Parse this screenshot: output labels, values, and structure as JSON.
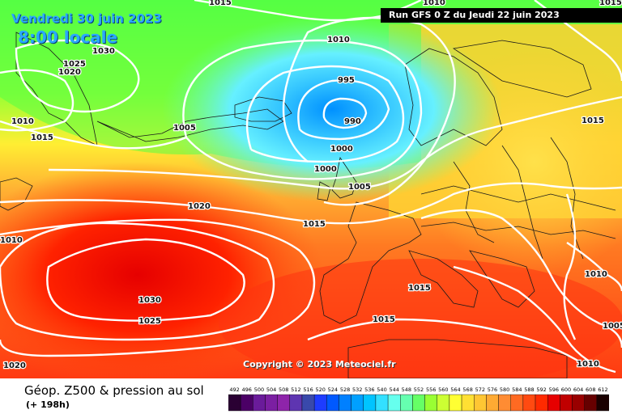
{
  "header": {
    "date": "Vendredi 30 juin 2023",
    "time": "8:00 locale",
    "run": "Run GFS 0 Z du Jeudi 22 juin 2023"
  },
  "copyright": "Copyright © 2023 Meteociel.fr",
  "footer": {
    "title": "Géop. Z500 & pression au sol",
    "subtitle": "(+ 198h)"
  },
  "legend": {
    "values": [
      "492",
      "496",
      "500",
      "504",
      "508",
      "512",
      "516",
      "520",
      "524",
      "528",
      "532",
      "536",
      "540",
      "544",
      "548",
      "552",
      "556",
      "560",
      "564",
      "568",
      "572",
      "576",
      "580",
      "584",
      "588",
      "592",
      "596",
      "600",
      "604",
      "608",
      "612"
    ],
    "colors": [
      "#2a0033",
      "#4b0066",
      "#6a1b9a",
      "#7b1fa2",
      "#8e24aa",
      "#5e35b1",
      "#3949ab",
      "#1e3cff",
      "#0059ff",
      "#0080ff",
      "#00a0ff",
      "#00c4ff",
      "#33e0ff",
      "#66ffee",
      "#66ffb0",
      "#66ff66",
      "#99ff33",
      "#ccff33",
      "#ffff33",
      "#ffe033",
      "#ffc633",
      "#ffaa33",
      "#ff8c33",
      "#ff6a22",
      "#ff4a11",
      "#ff2a00",
      "#e60000",
      "#c00000",
      "#990000",
      "#660000",
      "#1a0000"
    ]
  },
  "isobars": [
    {
      "label": "1015",
      "kind": "pressure"
    },
    {
      "label": "1010",
      "kind": "pressure"
    },
    {
      "label": "1030",
      "kind": "pressure"
    },
    {
      "label": "1025",
      "kind": "pressure"
    },
    {
      "label": "1020",
      "kind": "pressure"
    },
    {
      "label": "1010",
      "kind": "pressure"
    },
    {
      "label": "1015",
      "kind": "pressure"
    },
    {
      "label": "1005",
      "kind": "pressure"
    },
    {
      "label": "995",
      "kind": "pressure"
    },
    {
      "label": "990",
      "kind": "pressure"
    },
    {
      "label": "1000",
      "kind": "pressure"
    },
    {
      "label": "1000",
      "kind": "pressure"
    },
    {
      "label": "1005",
      "kind": "pressure"
    },
    {
      "label": "1020",
      "kind": "pressure"
    },
    {
      "label": "1015",
      "kind": "pressure"
    },
    {
      "label": "1015",
      "kind": "pressure"
    },
    {
      "label": "1030",
      "kind": "pressure"
    },
    {
      "label": "1025",
      "kind": "pressure"
    },
    {
      "label": "1015",
      "kind": "pressure"
    },
    {
      "label": "1015",
      "kind": "pressure"
    },
    {
      "label": "1010",
      "kind": "pressure"
    },
    {
      "label": "1010",
      "kind": "pressure"
    },
    {
      "label": "1005",
      "kind": "pressure"
    },
    {
      "label": "1010",
      "kind": "pressure"
    },
    {
      "label": "1020",
      "kind": "pressure"
    },
    {
      "label": "1015",
      "kind": "pressure"
    },
    {
      "label": "1010",
      "kind": "pressure"
    }
  ]
}
